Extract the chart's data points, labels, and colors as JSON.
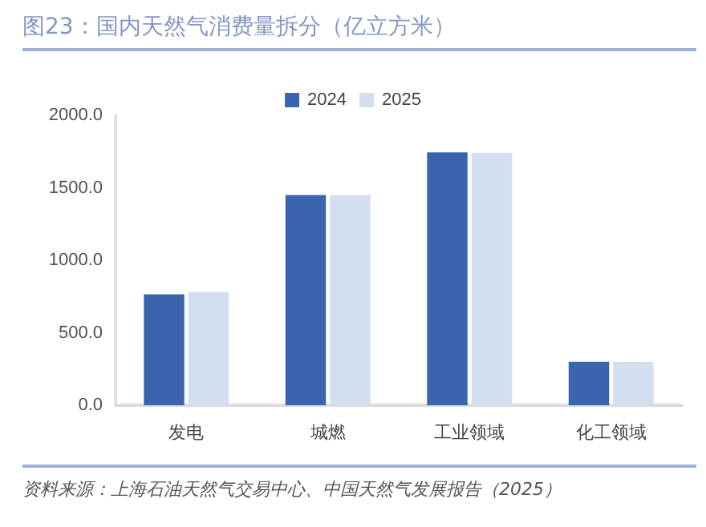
{
  "chart_data": {
    "type": "bar",
    "title": "图23：国内天然气消费量拆分（亿立方米）",
    "categories": [
      "发电",
      "城燃",
      "工业领域",
      "化工领域"
    ],
    "series": [
      {
        "name": "2024",
        "color": "#3a64ae",
        "values": [
          765,
          1450,
          1745,
          300
        ]
      },
      {
        "name": "2025",
        "color": "#d3dff0",
        "values": [
          780,
          1450,
          1740,
          300
        ]
      }
    ],
    "ylim": [
      0,
      2000
    ],
    "yticks": [
      {
        "value": 0,
        "label": "0.0"
      },
      {
        "value": 500,
        "label": "500.0"
      },
      {
        "value": 1000,
        "label": "1000.0"
      },
      {
        "value": 1500,
        "label": "1500.0"
      },
      {
        "value": 2000,
        "label": "2000.0"
      }
    ],
    "grid": false,
    "legend": "top",
    "annotations": [
      "资料来源：上海石油天然气交易中心、中国天然气发展报告（2025）"
    ]
  }
}
